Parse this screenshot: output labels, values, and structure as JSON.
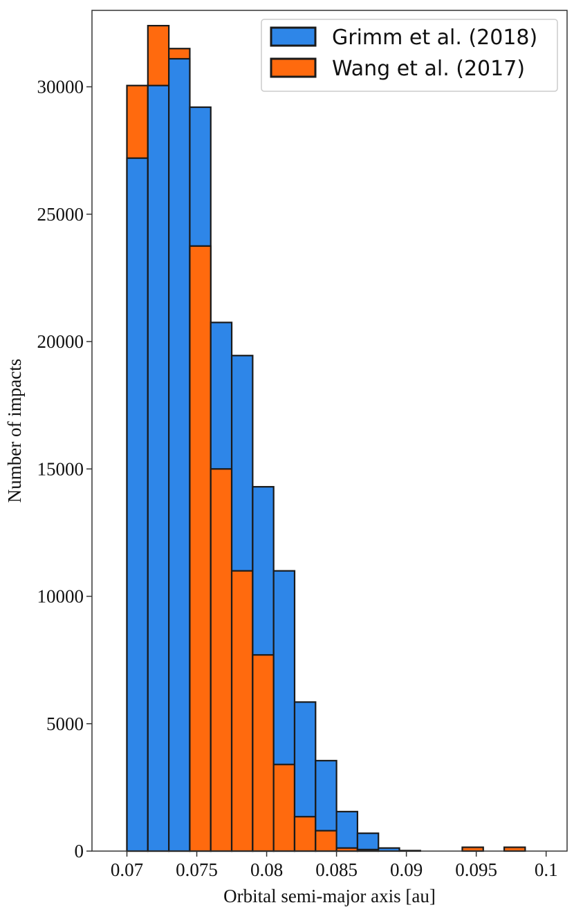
{
  "chart_data": {
    "type": "bar",
    "bin_edges": [
      0.07,
      0.0715,
      0.073,
      0.0745,
      0.076,
      0.0775,
      0.079,
      0.0805,
      0.082,
      0.0835,
      0.085,
      0.0865,
      0.088,
      0.0895,
      0.091,
      0.0925,
      0.094,
      0.0955,
      0.097,
      0.0985,
      0.1
    ],
    "series": [
      {
        "name": "Grimm et al. (2018)",
        "color": "#2e86e8",
        "values": [
          27200,
          30050,
          31100,
          29200,
          20750,
          19450,
          14300,
          11000,
          5850,
          3550,
          1550,
          700,
          120,
          20,
          0,
          0,
          0,
          0,
          0,
          0
        ]
      },
      {
        "name": "Wang et al. (2017)",
        "color": "#ff6a0e",
        "values": [
          30050,
          32400,
          31500,
          23750,
          15000,
          11000,
          7700,
          3400,
          1350,
          800,
          120,
          60,
          0,
          0,
          0,
          0,
          150,
          0,
          150,
          0
        ]
      }
    ],
    "xlabel": "Orbital semi-major axis [au]",
    "ylabel": "Number of impacts",
    "xlim": [
      0.0675,
      0.1015
    ],
    "ylim": [
      0,
      33000
    ],
    "xticks": [
      0.07,
      0.075,
      0.08,
      0.085,
      0.09,
      0.095,
      0.1
    ],
    "xtick_labels": [
      "0.07",
      "0.075",
      "0.08",
      "0.085",
      "0.09",
      "0.095",
      "0.1"
    ],
    "yticks": [
      0,
      5000,
      10000,
      15000,
      20000,
      25000,
      30000
    ],
    "ytick_labels": [
      "0",
      "5000",
      "10000",
      "15000",
      "20000",
      "25000",
      "30000"
    ],
    "grid": false,
    "legend_position": "top-right"
  }
}
